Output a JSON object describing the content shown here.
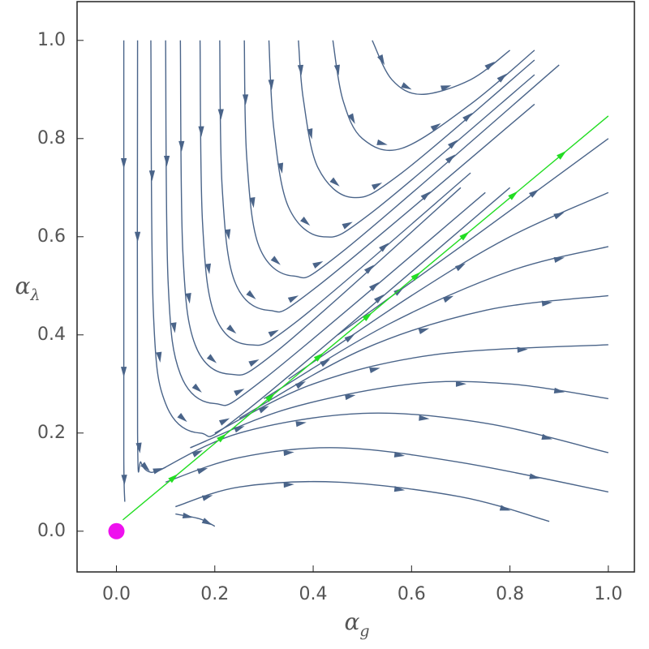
{
  "chart_data": {
    "type": "streamplot",
    "x_label": {
      "symbol": "α",
      "subscript": "g"
    },
    "y_label": {
      "symbol": "α",
      "subscript": "λ"
    },
    "xlim": [
      -0.08,
      1.053
    ],
    "ylim": [
      -0.083,
      1.079
    ],
    "xticks": [
      {
        "value": 0,
        "label": "0.0"
      },
      0.2,
      0.4,
      0.6,
      0.8,
      {
        "value": 1,
        "label": "1.0"
      }
    ],
    "yticks": [
      {
        "value": 0,
        "label": "0.0"
      },
      0.2,
      0.4,
      0.6,
      0.8,
      {
        "value": 1,
        "label": "1.0"
      }
    ],
    "color": "#4a6489",
    "streamlines": [
      {
        "x": [
          0.015,
          0.015,
          0.015,
          0.017
        ],
        "y": [
          1.0,
          0.5,
          0.15,
          0.06
        ]
      },
      {
        "x": [
          0.043,
          0.043,
          0.05,
          0.07,
          0.1
        ],
        "y": [
          1.0,
          0.2,
          0.14,
          0.12,
          0.13
        ]
      },
      {
        "x": [
          0.07,
          0.075,
          0.1,
          0.17,
          0.27,
          0.8
        ],
        "y": [
          1.0,
          0.45,
          0.26,
          0.2,
          0.25,
          0.7
        ]
      },
      {
        "x": [
          0.1,
          0.105,
          0.13,
          0.2,
          0.3,
          0.75
        ],
        "y": [
          1.0,
          0.51,
          0.32,
          0.26,
          0.31,
          0.69
        ]
      },
      {
        "x": [
          0.13,
          0.135,
          0.16,
          0.23,
          0.33,
          0.7
        ],
        "y": [
          1.0,
          0.57,
          0.38,
          0.32,
          0.37,
          0.7
        ]
      },
      {
        "x": [
          0.17,
          0.175,
          0.2,
          0.27,
          0.37,
          0.72
        ],
        "y": [
          1.0,
          0.63,
          0.44,
          0.38,
          0.43,
          0.73
        ]
      },
      {
        "x": [
          0.21,
          0.215,
          0.24,
          0.31,
          0.41,
          0.85
        ],
        "y": [
          1.0,
          0.7,
          0.51,
          0.45,
          0.5,
          0.87
        ]
      },
      {
        "x": [
          0.26,
          0.265,
          0.29,
          0.36,
          0.46,
          0.9
        ],
        "y": [
          1.0,
          0.76,
          0.58,
          0.52,
          0.57,
          0.95
        ]
      },
      {
        "x": [
          0.31,
          0.32,
          0.35,
          0.42,
          0.52,
          0.85
        ],
        "y": [
          1.0,
          0.82,
          0.66,
          0.6,
          0.65,
          0.93
        ]
      },
      {
        "x": [
          0.37,
          0.38,
          0.41,
          0.48,
          0.58,
          0.85
        ],
        "y": [
          1.0,
          0.88,
          0.74,
          0.68,
          0.73,
          0.96
        ]
      },
      {
        "x": [
          0.44,
          0.46,
          0.5,
          0.58,
          0.72,
          0.85
        ],
        "y": [
          1.0,
          0.88,
          0.8,
          0.78,
          0.87,
          0.98
        ]
      },
      {
        "x": [
          0.52,
          0.56,
          0.62,
          0.72,
          0.8
        ],
        "y": [
          1.0,
          0.92,
          0.89,
          0.92,
          0.98
        ]
      },
      {
        "x": [
          0.12,
          0.17,
          0.2
        ],
        "y": [
          0.035,
          0.025,
          0.01
        ]
      },
      {
        "x": [
          0.12,
          0.25,
          0.45,
          0.7,
          0.88
        ],
        "y": [
          0.05,
          0.09,
          0.1,
          0.07,
          0.02
        ]
      },
      {
        "x": [
          0.1,
          0.25,
          0.45,
          0.7,
          1.0
        ],
        "y": [
          0.1,
          0.15,
          0.17,
          0.14,
          0.08
        ]
      },
      {
        "x": [
          0.08,
          0.25,
          0.5,
          0.75,
          1.0
        ],
        "y": [
          0.12,
          0.2,
          0.24,
          0.22,
          0.16
        ]
      },
      {
        "x": [
          0.15,
          0.35,
          0.6,
          0.8,
          1.0
        ],
        "y": [
          0.17,
          0.25,
          0.3,
          0.3,
          0.27
        ]
      },
      {
        "x": [
          0.2,
          0.4,
          0.65,
          1.0
        ],
        "y": [
          0.2,
          0.3,
          0.36,
          0.38
        ]
      },
      {
        "x": [
          0.25,
          0.5,
          0.75,
          1.0
        ],
        "y": [
          0.23,
          0.37,
          0.45,
          0.48
        ]
      },
      {
        "x": [
          0.3,
          0.55,
          0.8,
          1.0
        ],
        "y": [
          0.27,
          0.42,
          0.53,
          0.58
        ]
      },
      {
        "x": [
          0.35,
          0.6,
          0.8,
          1.0
        ],
        "y": [
          0.31,
          0.48,
          0.6,
          0.69
        ]
      },
      {
        "x": [
          0.45,
          0.7,
          1.0
        ],
        "y": [
          0.4,
          0.58,
          0.8
        ]
      }
    ],
    "separatrix": {
      "color": "#22dd22",
      "x": [
        0.013,
        1.0
      ],
      "y": [
        0.023,
        0.846
      ]
    },
    "fixed_point": {
      "color": "#ee11ee",
      "x": 0,
      "y": 0
    }
  }
}
